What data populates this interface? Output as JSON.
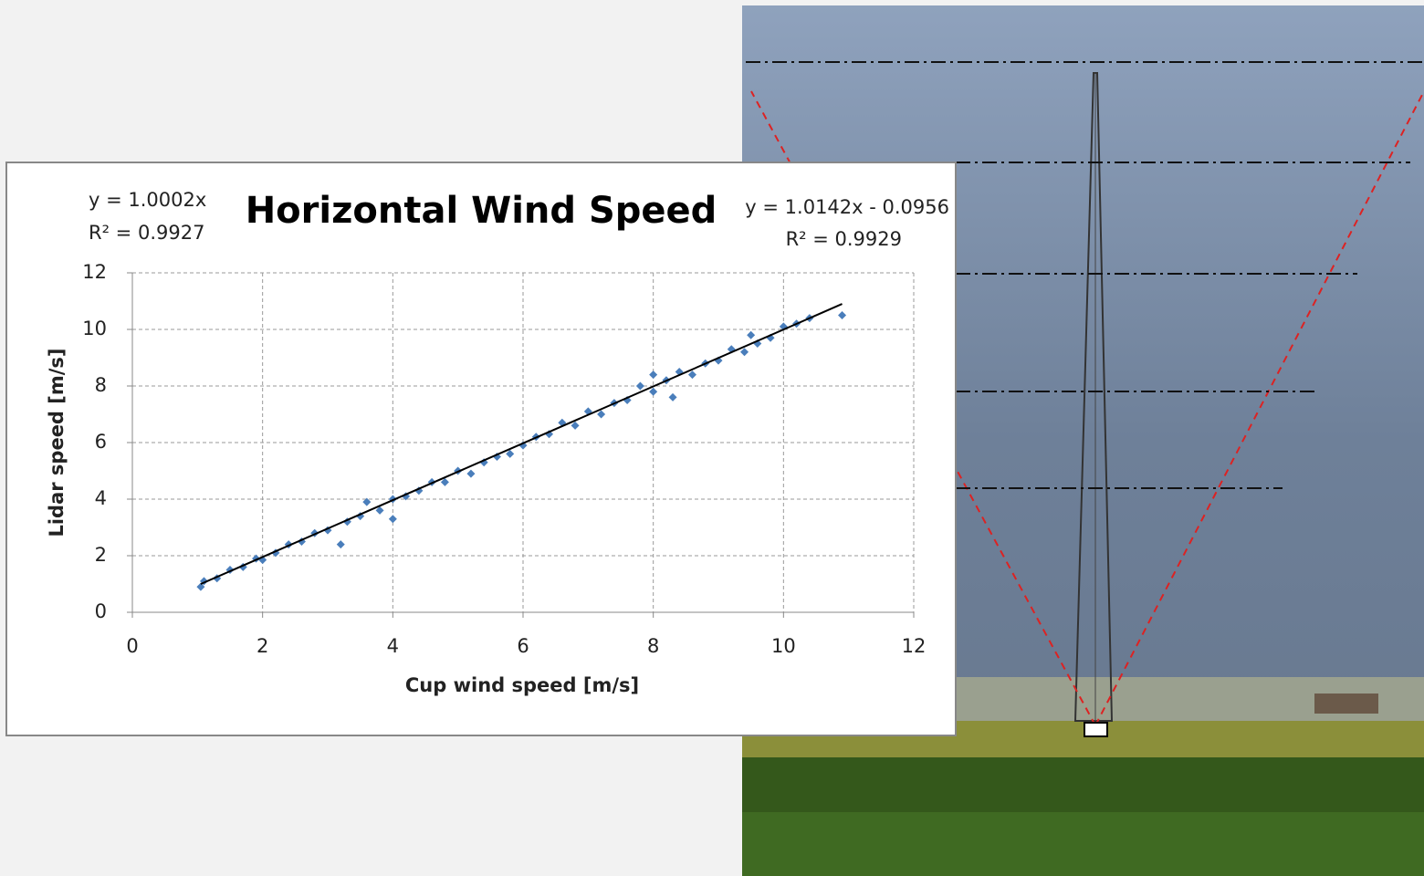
{
  "chart_data": {
    "type": "scatter",
    "title": "Horizontal Wind Speed",
    "annotations": [
      "y = 1.0002x",
      "R² = 0.9927",
      "y = 1.0142x - 0.0956",
      "R² = 0.9929"
    ],
    "x_label": "Cup wind speed  [m/s]",
    "y_label": "Lidar speed  [m/s]",
    "x": [
      1.05,
      1.1,
      1.3,
      1.5,
      1.7,
      1.9,
      2.0,
      2.2,
      2.4,
      2.6,
      2.8,
      3.0,
      3.2,
      3.3,
      3.5,
      3.6,
      3.8,
      4.0,
      4.0,
      4.2,
      4.4,
      4.6,
      4.8,
      5.0,
      5.2,
      5.4,
      5.6,
      5.8,
      6.0,
      6.2,
      6.4,
      6.6,
      6.8,
      7.0,
      7.2,
      7.4,
      7.6,
      7.8,
      8.0,
      8.0,
      8.2,
      8.3,
      8.4,
      8.6,
      8.8,
      9.0,
      9.2,
      9.4,
      9.5,
      9.6,
      9.8,
      10.0,
      10.2,
      10.4,
      10.9
    ],
    "values": [
      0.9,
      1.1,
      1.2,
      1.5,
      1.6,
      1.9,
      1.85,
      2.1,
      2.4,
      2.5,
      2.8,
      2.9,
      2.4,
      3.2,
      3.4,
      3.9,
      3.6,
      4.0,
      3.3,
      4.1,
      4.3,
      4.6,
      4.6,
      5.0,
      4.9,
      5.3,
      5.5,
      5.6,
      5.9,
      6.2,
      6.3,
      6.7,
      6.6,
      7.1,
      7.0,
      7.4,
      7.5,
      8.0,
      7.8,
      8.4,
      8.2,
      7.6,
      8.5,
      8.4,
      8.8,
      8.9,
      9.3,
      9.2,
      9.8,
      9.5,
      9.7,
      10.1,
      10.2,
      10.4,
      10.5
    ],
    "color": "#4a7ebb",
    "trendline": {
      "x": [
        1.05,
        10.9
      ],
      "values": [
        1.0,
        10.9
      ],
      "color": "#000000"
    },
    "xlim": [
      0,
      12
    ],
    "ylim": [
      0,
      12
    ],
    "xticks": [
      0,
      2,
      4,
      6,
      8,
      10,
      12
    ],
    "yticks": [
      0,
      2,
      4,
      6,
      8,
      10,
      12
    ],
    "grid": true
  }
}
